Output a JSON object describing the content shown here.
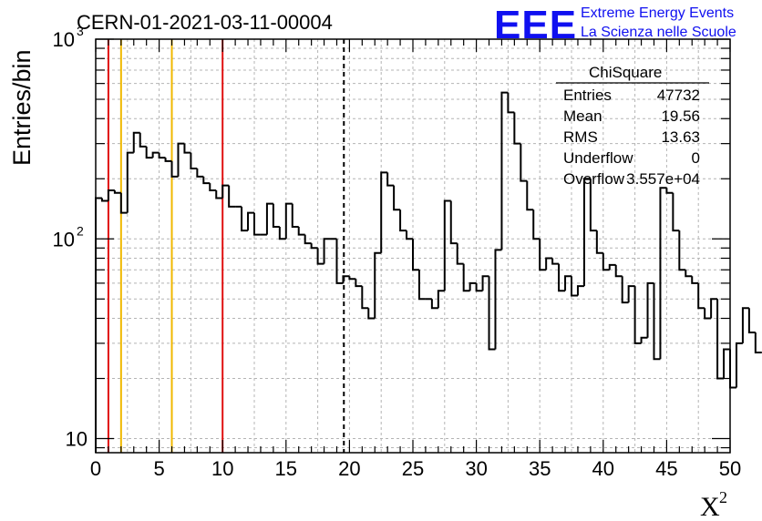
{
  "header": {
    "logo": "EEE",
    "line1": "Extreme Energy Events",
    "line2": "La Scienza nelle Scuole"
  },
  "stats_box": {
    "title": "ChiSquare",
    "rows": [
      {
        "label": "Entries",
        "value": "47732"
      },
      {
        "label": "Mean",
        "value": "19.56"
      },
      {
        "label": "RMS",
        "value": "13.63"
      },
      {
        "label": "Underflow",
        "value": "0"
      },
      {
        "label": "Overflow",
        "value": "3.557e+04"
      }
    ]
  },
  "colors": {
    "histogram": "#000000",
    "red_lines": "#e01010",
    "orange_lines": "#f0b800",
    "grid": "#b4b4b4",
    "logo_blue": "#1010f0"
  },
  "chart_data": {
    "type": "histogram",
    "title": "CERN-01-2021-03-11-00004",
    "xlabel": "X",
    "xlabel_superscript": "2",
    "ylabel": "Entries/bin",
    "xlim": [
      0,
      50
    ],
    "ylim": [
      8.5,
      1000
    ],
    "yscale": "log",
    "grid": true,
    "bin_width": 0.5,
    "x_ticks": [
      "0",
      "5",
      "10",
      "15",
      "20",
      "25",
      "30",
      "35",
      "40",
      "45",
      "50"
    ],
    "y_ticks": [
      {
        "value": 10,
        "base": "10",
        "exp": ""
      },
      {
        "value": 100,
        "base": "10",
        "exp": "2"
      },
      {
        "value": 1000,
        "base": "10",
        "exp": "3"
      }
    ],
    "values": [
      160,
      155,
      175,
      170,
      135,
      270,
      340,
      290,
      255,
      270,
      255,
      245,
      205,
      300,
      270,
      225,
      205,
      190,
      175,
      160,
      185,
      145,
      145,
      110,
      135,
      105,
      105,
      150,
      115,
      100,
      150,
      115,
      105,
      95,
      90,
      75,
      100,
      100,
      60,
      65,
      63,
      58,
      45,
      40,
      85,
      215,
      185,
      140,
      110,
      100,
      70,
      50,
      50,
      45,
      55,
      155,
      95,
      75,
      55,
      60,
      55,
      65,
      28,
      88,
      540,
      430,
      300,
      195,
      140,
      100,
      70,
      80,
      75,
      55,
      65,
      52,
      58,
      200,
      110,
      85,
      70,
      74,
      65,
      48,
      58,
      30,
      32,
      60,
      25,
      180,
      170,
      110,
      70,
      65,
      60,
      45,
      40,
      50,
      20,
      28,
      18,
      30,
      45,
      34,
      27
    ],
    "vertical_lines": [
      {
        "x": 1,
        "color": "red",
        "style": "solid"
      },
      {
        "x": 2,
        "color": "orange",
        "style": "solid"
      },
      {
        "x": 6,
        "color": "orange",
        "style": "solid"
      },
      {
        "x": 10,
        "color": "red",
        "style": "solid"
      },
      {
        "x": 19.56,
        "color": "black",
        "style": "dashed"
      }
    ]
  }
}
